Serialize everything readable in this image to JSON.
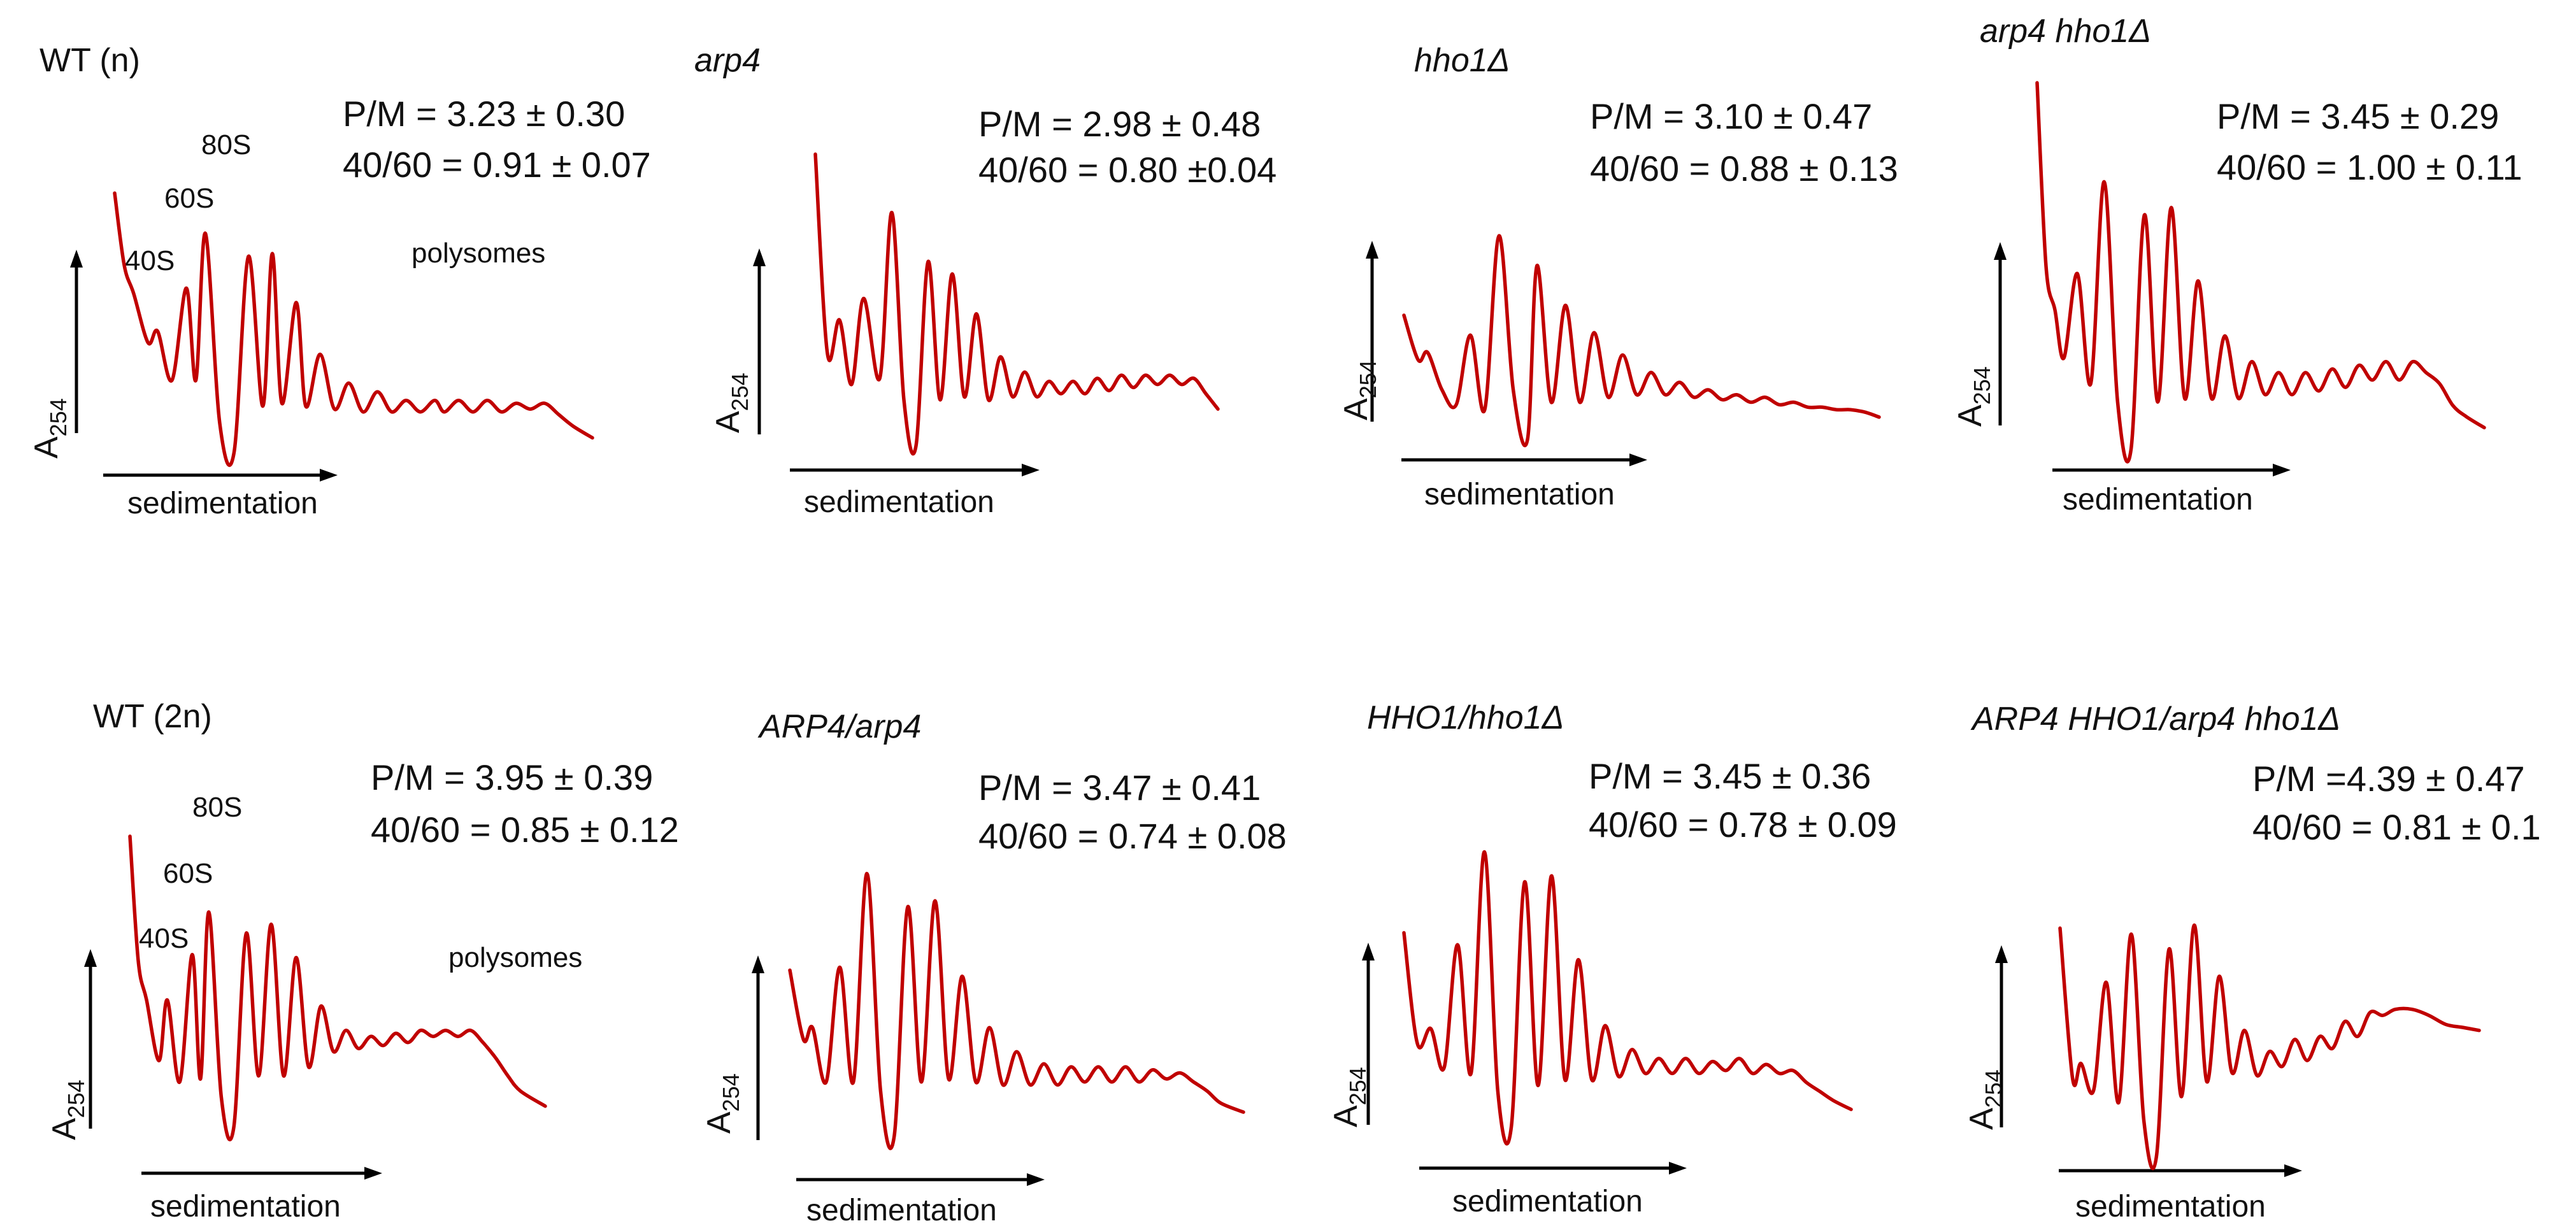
{
  "figure": {
    "panels_total": 8
  },
  "chart_data": [
    {
      "type": "line",
      "title": "WT (n)",
      "title_italic": false,
      "stats": [
        "P/M = 3.23 ± 0.30",
        "40/60 = 0.91 ± 0.07"
      ],
      "xlabel": "sedimentation",
      "ylabel": "A",
      "ylabel_sub": "254",
      "peak_labels": [
        "40S",
        "60S",
        "80S"
      ],
      "region_label": "polysomes",
      "x": [
        0,
        2,
        4,
        7,
        9,
        12,
        15,
        17,
        19,
        22,
        25,
        28,
        31,
        33,
        35,
        38,
        40,
        43,
        46,
        49,
        52,
        55,
        58,
        61,
        64,
        67,
        69,
        72,
        75,
        78,
        81,
        84,
        87,
        90,
        93,
        96,
        100
      ],
      "y": [
        0.9,
        0.65,
        0.55,
        0.38,
        0.42,
        0.25,
        0.57,
        0.25,
        0.76,
        0.1,
        0.0,
        0.68,
        0.16,
        0.69,
        0.17,
        0.52,
        0.16,
        0.34,
        0.15,
        0.24,
        0.14,
        0.21,
        0.14,
        0.18,
        0.14,
        0.18,
        0.14,
        0.18,
        0.14,
        0.18,
        0.14,
        0.17,
        0.15,
        0.17,
        0.13,
        0.09,
        0.05
      ]
    },
    {
      "type": "line",
      "title": "arp4",
      "title_italic": true,
      "stats": [
        "P/M = 2.98 ± 0.48",
        "40/60 = 0.80 ±0.04"
      ],
      "xlabel": "sedimentation",
      "ylabel": "A",
      "ylabel_sub": "254",
      "x": [
        0,
        3,
        6,
        9,
        12,
        16,
        19,
        22,
        25,
        28,
        31,
        34,
        37,
        40,
        43,
        46,
        49,
        52,
        55,
        58,
        61,
        64,
        67,
        70,
        73,
        76,
        79,
        82,
        85,
        88,
        91,
        94,
        97,
        100
      ],
      "y": [
        0.95,
        0.3,
        0.41,
        0.2,
        0.48,
        0.22,
        0.76,
        0.15,
        0.0,
        0.6,
        0.15,
        0.56,
        0.16,
        0.43,
        0.15,
        0.29,
        0.16,
        0.24,
        0.16,
        0.21,
        0.17,
        0.21,
        0.17,
        0.22,
        0.18,
        0.23,
        0.19,
        0.23,
        0.2,
        0.23,
        0.2,
        0.22,
        0.17,
        0.12
      ]
    },
    {
      "type": "line",
      "title": "hho1Δ",
      "title_italic": true,
      "stats": [
        "P/M = 3.10 ± 0.47",
        "40/60 = 0.88 ± 0.13"
      ],
      "xlabel": "sedimentation",
      "ylabel": "A",
      "ylabel_sub": "254",
      "x": [
        0,
        3,
        5,
        8,
        11,
        14,
        17,
        20,
        23,
        26,
        28,
        31,
        34,
        37,
        40,
        43,
        46,
        49,
        52,
        55,
        58,
        61,
        64,
        67,
        70,
        73,
        76,
        79,
        82,
        85,
        88,
        91,
        94,
        97,
        100
      ],
      "y": [
        0.5,
        0.32,
        0.35,
        0.2,
        0.14,
        0.42,
        0.12,
        0.82,
        0.2,
        0.0,
        0.7,
        0.15,
        0.54,
        0.15,
        0.43,
        0.17,
        0.34,
        0.18,
        0.27,
        0.18,
        0.23,
        0.17,
        0.2,
        0.16,
        0.18,
        0.15,
        0.17,
        0.14,
        0.15,
        0.13,
        0.13,
        0.12,
        0.12,
        0.11,
        0.09
      ]
    },
    {
      "type": "line",
      "title": "arp4 hho1Δ",
      "title_italic": true,
      "stats": [
        "P/M = 3.45 ± 0.29",
        "40/60 = 1.00 ± 0.11"
      ],
      "xlabel": "sedimentation",
      "ylabel": "A",
      "ylabel_sub": "254",
      "x": [
        0,
        2,
        4,
        6,
        9,
        12,
        15,
        18,
        21,
        24,
        27,
        30,
        33,
        36,
        39,
        42,
        45,
        48,
        51,
        54,
        57,
        60,
        63,
        66,
        69,
        72,
        75,
        78,
        81,
        84,
        87,
        90,
        93,
        96,
        100
      ],
      "y": [
        1.0,
        0.5,
        0.38,
        0.25,
        0.48,
        0.18,
        0.73,
        0.13,
        0.0,
        0.64,
        0.13,
        0.66,
        0.14,
        0.46,
        0.14,
        0.31,
        0.14,
        0.24,
        0.15,
        0.21,
        0.15,
        0.21,
        0.16,
        0.22,
        0.17,
        0.23,
        0.19,
        0.24,
        0.19,
        0.24,
        0.21,
        0.18,
        0.12,
        0.09,
        0.06
      ]
    },
    {
      "type": "line",
      "title": "WT (2n)",
      "title_italic": false,
      "stats": [
        "P/M = 3.95 ± 0.39",
        "40/60 = 0.85 ± 0.12"
      ],
      "xlabel": "sedimentation",
      "ylabel": "A",
      "ylabel_sub": "254",
      "peak_labels": [
        "40S",
        "60S",
        "80S"
      ],
      "region_label": "polysomes",
      "x": [
        0,
        2,
        4,
        7,
        9,
        12,
        15,
        17,
        19,
        22,
        25,
        28,
        31,
        34,
        37,
        40,
        43,
        46,
        49,
        52,
        55,
        58,
        61,
        64,
        67,
        70,
        73,
        76,
        79,
        82,
        85,
        88,
        91,
        94,
        100
      ],
      "y": [
        0.96,
        0.55,
        0.42,
        0.22,
        0.42,
        0.15,
        0.57,
        0.16,
        0.71,
        0.1,
        0.0,
        0.64,
        0.17,
        0.67,
        0.17,
        0.56,
        0.2,
        0.4,
        0.25,
        0.32,
        0.26,
        0.3,
        0.27,
        0.31,
        0.28,
        0.32,
        0.3,
        0.32,
        0.3,
        0.32,
        0.28,
        0.23,
        0.17,
        0.12,
        0.07
      ]
    },
    {
      "type": "line",
      "title": "ARP4/arp4",
      "title_italic": true,
      "stats": [
        "P/M = 3.47 ± 0.41",
        "40/60 = 0.74 ± 0.08"
      ],
      "xlabel": "sedimentation",
      "ylabel": "A",
      "ylabel_sub": "254",
      "x": [
        0,
        3,
        5,
        8,
        11,
        14,
        17,
        20,
        23,
        26,
        29,
        32,
        35,
        38,
        41,
        44,
        47,
        50,
        53,
        56,
        59,
        62,
        65,
        68,
        71,
        74,
        77,
        80,
        83,
        86,
        89,
        92,
        95,
        100
      ],
      "y": [
        0.55,
        0.32,
        0.36,
        0.18,
        0.56,
        0.18,
        0.87,
        0.15,
        0.0,
        0.76,
        0.18,
        0.78,
        0.19,
        0.53,
        0.18,
        0.36,
        0.17,
        0.28,
        0.17,
        0.24,
        0.17,
        0.23,
        0.18,
        0.23,
        0.18,
        0.23,
        0.18,
        0.22,
        0.19,
        0.21,
        0.18,
        0.15,
        0.11,
        0.08
      ]
    },
    {
      "type": "line",
      "title": "HHO1/hho1Δ",
      "title_italic": true,
      "stats": [
        "P/M = 3.45 ± 0.36",
        "40/60 = 0.78 ± 0.09"
      ],
      "xlabel": "sedimentation",
      "ylabel": "A",
      "ylabel_sub": "254",
      "x": [
        0,
        3,
        6,
        9,
        12,
        15,
        18,
        21,
        24,
        27,
        30,
        33,
        36,
        39,
        42,
        45,
        48,
        51,
        54,
        57,
        60,
        63,
        66,
        69,
        72,
        75,
        78,
        81,
        84,
        87,
        90,
        93,
        96,
        100
      ],
      "y": [
        0.65,
        0.28,
        0.33,
        0.2,
        0.61,
        0.18,
        0.92,
        0.12,
        0.0,
        0.82,
        0.14,
        0.84,
        0.16,
        0.56,
        0.16,
        0.34,
        0.17,
        0.26,
        0.18,
        0.23,
        0.18,
        0.23,
        0.18,
        0.22,
        0.19,
        0.23,
        0.18,
        0.21,
        0.18,
        0.19,
        0.15,
        0.12,
        0.09,
        0.06
      ]
    },
    {
      "type": "line",
      "title": "ARP4 HHO1/arp4 hho1Δ",
      "title_italic": true,
      "stats": [
        "P/M =4.39 ± 0.47",
        "40/60 = 0.81 ± 0.1"
      ],
      "xlabel": "sedimentation",
      "ylabel": "A",
      "ylabel_sub": "254",
      "x": [
        0,
        3,
        5,
        8,
        11,
        14,
        17,
        20,
        23,
        26,
        29,
        32,
        35,
        38,
        41,
        44,
        47,
        50,
        53,
        56,
        59,
        62,
        65,
        68,
        71,
        74,
        77,
        80,
        84,
        88,
        92,
        96,
        100
      ],
      "y": [
        0.76,
        0.26,
        0.31,
        0.22,
        0.58,
        0.18,
        0.74,
        0.12,
        0.0,
        0.69,
        0.2,
        0.77,
        0.25,
        0.6,
        0.28,
        0.42,
        0.27,
        0.35,
        0.3,
        0.39,
        0.32,
        0.4,
        0.36,
        0.45,
        0.4,
        0.48,
        0.47,
        0.49,
        0.49,
        0.47,
        0.44,
        0.43,
        0.42
      ]
    }
  ]
}
